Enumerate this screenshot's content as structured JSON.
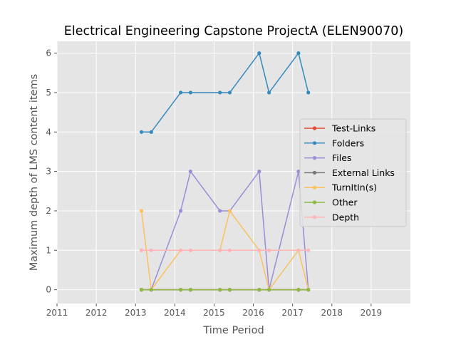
{
  "chart_data": {
    "type": "line",
    "title": "Electrical Engineering Capstone ProjectA (ELEN90070)",
    "xlabel": "Time Period",
    "ylabel": "Maximum depth of LMS content items",
    "xlim": [
      2011,
      2020
    ],
    "ylim": [
      -0.35,
      6.3
    ],
    "x_ticks": [
      "2011",
      "2012",
      "2013",
      "2014",
      "2015",
      "2016",
      "2017",
      "2018",
      "2019"
    ],
    "y_ticks": [
      "0",
      "1",
      "2",
      "3",
      "4",
      "5",
      "6"
    ],
    "grid": true,
    "legend_position": "center-right",
    "x": [
      2013.15,
      2013.4,
      2014.15,
      2014.4,
      2015.15,
      2015.4,
      2016.15,
      2016.4,
      2017.15,
      2017.4
    ],
    "series": [
      {
        "name": "Test-Links",
        "color": "#E24A33",
        "values": [
          0,
          0,
          0,
          0,
          0,
          0,
          0,
          0,
          0,
          0
        ]
      },
      {
        "name": "Folders",
        "color": "#348ABD",
        "values": [
          4,
          4,
          5,
          5,
          5,
          5,
          6,
          5,
          6,
          5
        ]
      },
      {
        "name": "Files",
        "color": "#988ED5",
        "values": [
          0,
          0,
          2,
          3,
          2,
          2,
          3,
          0,
          3,
          0
        ]
      },
      {
        "name": "External Links",
        "color": "#777777",
        "values": [
          0,
          0,
          0,
          0,
          0,
          0,
          0,
          0,
          0,
          0
        ]
      },
      {
        "name": "TurnItIn(s)",
        "color": "#FBC15E",
        "values": [
          2,
          0,
          1,
          1,
          1,
          2,
          1,
          0,
          1,
          0
        ]
      },
      {
        "name": "Other",
        "color": "#8EBA42",
        "values": [
          0,
          0,
          0,
          0,
          0,
          0,
          0,
          0,
          0,
          0
        ]
      },
      {
        "name": "Depth",
        "color": "#FFB5B8",
        "values": [
          1,
          1,
          1,
          1,
          1,
          1,
          1,
          1,
          1,
          1
        ]
      }
    ]
  }
}
